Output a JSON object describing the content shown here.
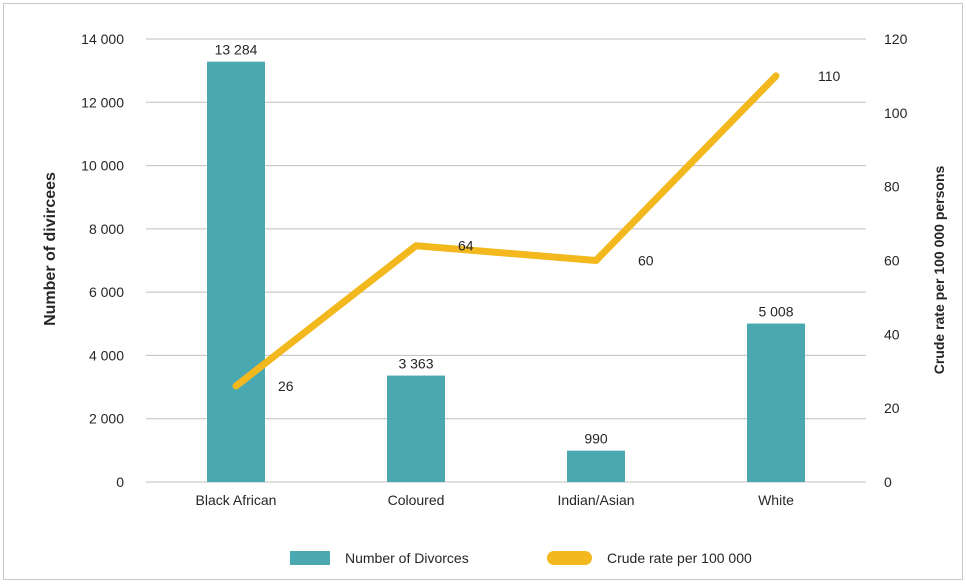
{
  "chart_data": {
    "type": "bar",
    "categories": [
      "Black African",
      "Coloured",
      "Indian/Asian",
      "White"
    ],
    "series": [
      {
        "name": "Number of Divorces",
        "type": "bar",
        "axis": "left",
        "color": "#49a8b0",
        "values": [
          13284,
          3363,
          990,
          5008
        ],
        "labels": [
          "13 284",
          "3 363",
          "990",
          "5 008"
        ]
      },
      {
        "name": "Crude rate per 100 000",
        "type": "line",
        "axis": "right",
        "color": "#f2b81d",
        "values": [
          26,
          64,
          60,
          110
        ],
        "labels": [
          "26",
          "64",
          "60",
          "110"
        ]
      }
    ],
    "y_left": {
      "label": "Number of divircees",
      "range": [
        0,
        14000
      ],
      "ticks": [
        "0",
        "2 000",
        "4 000",
        "6 000",
        "8 000",
        "10 000",
        "12 000",
        "14 000"
      ]
    },
    "y_right": {
      "label": "Crude rate per 100 000 persons",
      "range": [
        0,
        120
      ],
      "ticks": [
        "0",
        "20",
        "40",
        "60",
        "80",
        "100",
        "120"
      ]
    },
    "grid": true,
    "legend_position": "bottom"
  }
}
